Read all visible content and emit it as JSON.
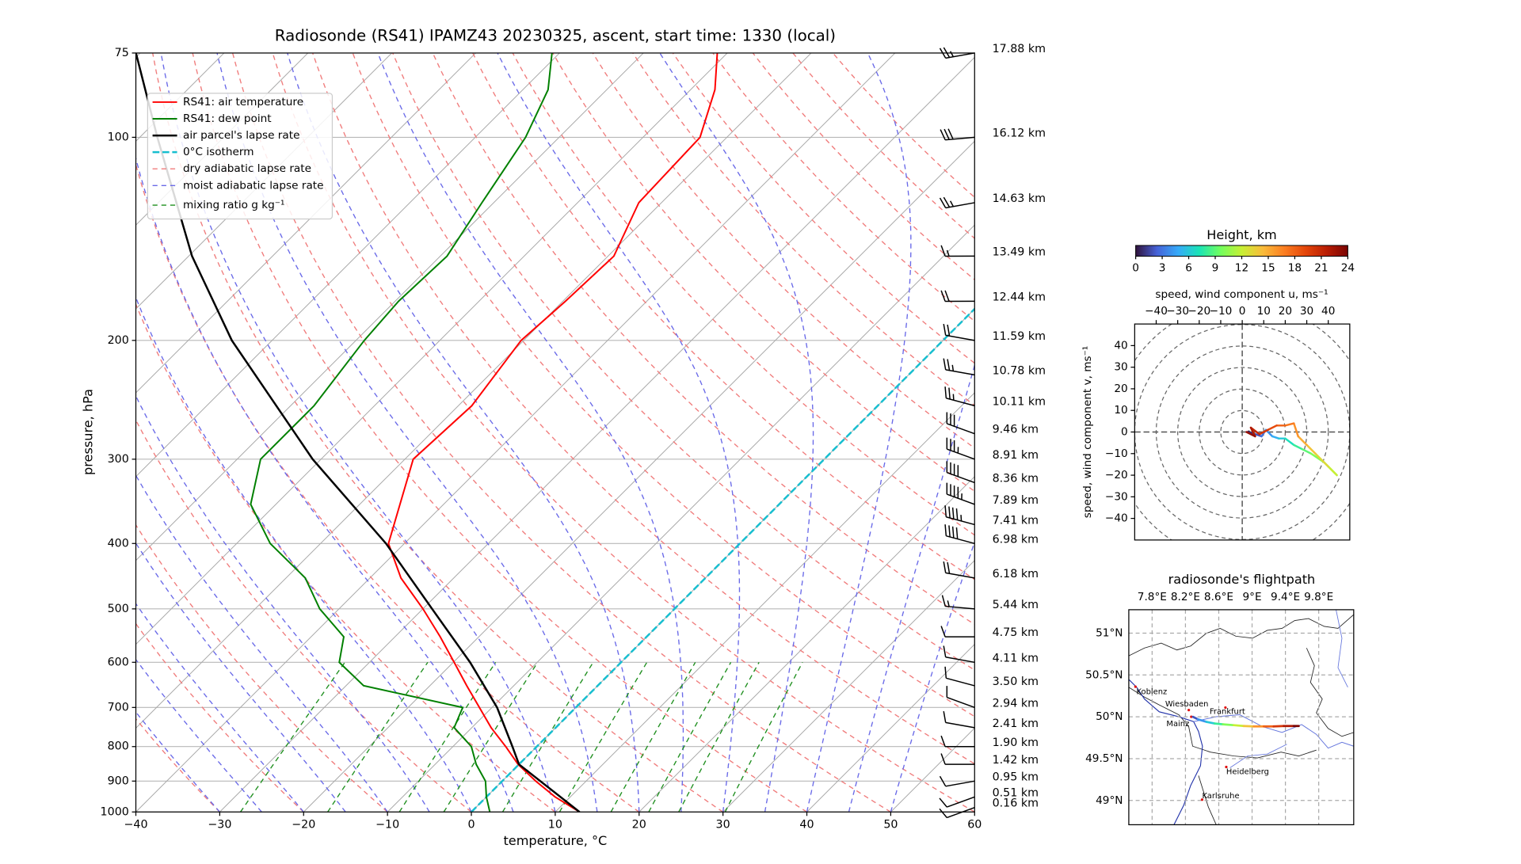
{
  "chart_data": [
    {
      "type": "skewt",
      "title": "Radiosonde (RS41) IPAMZ43 20230325, ascent, start time: 1330 (local)",
      "xlabel": "temperature, °C",
      "ylabel": "pressure, hPa",
      "xlim": [
        -40,
        60
      ],
      "ylim": [
        1000,
        75
      ],
      "ylog": true,
      "grid": true,
      "legend": "upper left",
      "xticks": [
        {
          "value": -40,
          "label": "−40"
        },
        {
          "value": -30,
          "label": "−30"
        },
        {
          "value": -20,
          "label": "−20"
        },
        {
          "value": -10,
          "label": "−10"
        },
        0,
        10,
        20,
        30,
        40,
        50,
        60
      ],
      "yticks": [
        1000,
        900,
        800,
        700,
        600,
        500,
        400,
        300,
        200,
        100,
        75
      ],
      "series": [
        {
          "name": "RS41: air temperature",
          "color": "#ff0000",
          "pressure": [
            1000,
            950,
            900,
            850,
            800,
            750,
            700,
            650,
            600,
            550,
            500,
            450,
            400,
            350,
            300,
            250,
            200,
            175,
            150,
            125,
            100,
            85,
            75
          ],
          "values": [
            12.9,
            8.2,
            4.0,
            -0.1,
            -3.7,
            -7.7,
            -11.5,
            -15.6,
            -19.9,
            -24.6,
            -30.0,
            -36.3,
            -41.9,
            -45.2,
            -49.0,
            -48.4,
            -50.3,
            -49.7,
            -49.3,
            -52.7,
            -53.2,
            -57.1,
            -61.2
          ]
        },
        {
          "name": "RS41: dew point",
          "color": "#008000",
          "pressure": [
            1000,
            950,
            900,
            850,
            800,
            750,
            700,
            650,
            600,
            550,
            500,
            450,
            400,
            350,
            300,
            250,
            200,
            175,
            150,
            125,
            100,
            85,
            75
          ],
          "values": [
            2.2,
            0.0,
            -2.0,
            -5.1,
            -7.8,
            -12.1,
            -13.5,
            -27.9,
            -33.6,
            -36.1,
            -42.3,
            -47.7,
            -56.0,
            -63.0,
            -67.2,
            -67.2,
            -69.0,
            -69.6,
            -69.2,
            -71.4,
            -74.0,
            -77.0,
            -80.9
          ]
        },
        {
          "name": "air parcel's lapse rate",
          "color": "#000000",
          "pressure": [
            1000,
            850,
            800,
            700,
            600,
            500,
            400,
            300,
            200,
            150,
            100,
            75
          ],
          "values": [
            12.9,
            0.0,
            -2.9,
            -9.4,
            -18.0,
            -28.9,
            -42.2,
            -61.0,
            -84.8,
            -99.6,
            -117.9,
            -130.5
          ]
        }
      ],
      "reference_lines": [
        {
          "name": "0°C isotherm",
          "color": "#17becf",
          "value": 0
        },
        {
          "name": "dry adiabatic lapse rate",
          "color": "#f07c7c"
        },
        {
          "name": "moist adiabatic lapse rate",
          "color": "#6a6ae8"
        },
        {
          "name": "mixing ratio g kg⁻¹",
          "color": "#1f8f1f"
        }
      ],
      "wind": {
        "pressure": [
          75,
          100,
          125,
          150,
          175,
          200,
          225,
          250,
          275,
          300,
          325,
          350,
          375,
          400,
          450,
          500,
          550,
          600,
          650,
          700,
          750,
          800,
          850,
          900,
          950,
          985
        ],
        "height_labels": [
          "17.88 km",
          "16.12 km",
          "14.63 km",
          "13.49 km",
          "12.44 km",
          "11.59 km",
          "10.78 km",
          "10.11 km",
          "9.46 km",
          "8.91 km",
          "8.36 km",
          "7.89 km",
          "7.41 km",
          "6.98 km",
          "6.18 km",
          "5.44 km",
          "4.75 km",
          "4.11 km",
          "3.50 km",
          "2.94 km",
          "2.41 km",
          "1.90 km",
          "1.42 km",
          "0.95 km",
          "0.51 km",
          "0.16 km"
        ],
        "speed": [
          25,
          30,
          25,
          15,
          20,
          20,
          25,
          25,
          30,
          35,
          40,
          45,
          45,
          40,
          20,
          15,
          10,
          10,
          10,
          10,
          10,
          10,
          10,
          10,
          10,
          10
        ],
        "direction": [
          260,
          265,
          260,
          270,
          270,
          280,
          280,
          285,
          290,
          290,
          290,
          290,
          285,
          285,
          280,
          275,
          270,
          280,
          285,
          290,
          280,
          270,
          270,
          260,
          250,
          250
        ]
      }
    },
    {
      "type": "hodograph",
      "colorbar_title": "Height, km",
      "colorbar_lim": [
        0,
        24
      ],
      "colorbar_ticks": [
        0,
        3,
        6,
        9,
        12,
        15,
        18,
        21,
        24
      ],
      "xlabel": "speed, wind component u, ms⁻¹",
      "ylabel": "speed, wind component v, ms⁻¹",
      "xlim": [
        -50,
        50
      ],
      "ylim": [
        -50,
        50
      ],
      "xticks": [
        {
          "value": -40,
          "label": "−40"
        },
        {
          "value": -30,
          "label": "−30"
        },
        {
          "value": -20,
          "label": "−20"
        },
        {
          "value": -10,
          "label": "−10"
        },
        0,
        10,
        20,
        30,
        40
      ],
      "yticks": [
        {
          "value": -40,
          "label": "−40"
        },
        {
          "value": -30,
          "label": "−30"
        },
        {
          "value": -20,
          "label": "−20"
        },
        {
          "value": -10,
          "label": "−10"
        },
        0,
        10,
        20,
        30,
        40
      ],
      "rings": [
        10,
        20,
        30,
        40,
        50,
        60
      ],
      "height": [
        0,
        1,
        2,
        3,
        4,
        5,
        6,
        7,
        8,
        9,
        10,
        11,
        12,
        13,
        14,
        15,
        16,
        17,
        18,
        19,
        20,
        21,
        22,
        23
      ],
      "u": [
        3,
        6,
        9,
        11,
        14,
        17,
        20,
        24,
        28,
        32,
        38,
        44,
        40,
        34,
        30,
        26,
        24,
        20,
        16,
        12,
        8,
        4,
        6,
        2
      ],
      "v": [
        0,
        -1,
        -2,
        1,
        -2,
        -3,
        -3,
        -6,
        -8,
        -10,
        -14,
        -20,
        -16,
        -10,
        -6,
        -2,
        4,
        3,
        3,
        1,
        -1,
        2,
        -2,
        0
      ]
    },
    {
      "type": "map",
      "title": "radiosonde's flightpath",
      "xlim": [
        7.52,
        10.22
      ],
      "ylim": [
        48.71,
        51.28
      ],
      "xticks": [
        {
          "value": 7.8,
          "label": "7.8°E"
        },
        {
          "value": 8.2,
          "label": "8.2°E"
        },
        {
          "value": 8.6,
          "label": "8.6°E"
        },
        {
          "value": 9,
          "label": "9°E"
        },
        {
          "value": 9.4,
          "label": "9.4°E"
        },
        {
          "value": 9.8,
          "label": "9.8°E"
        }
      ],
      "yticks": [
        {
          "value": 51,
          "label": "51°N"
        },
        {
          "value": 50.5,
          "label": "50.5°N"
        },
        {
          "value": 50,
          "label": "50°N"
        },
        {
          "value": 49.5,
          "label": "49.5°N"
        },
        {
          "value": 49,
          "label": "49°N"
        }
      ],
      "cities": [
        {
          "name": "Koblenz",
          "lon": 7.6,
          "lat": 50.36
        },
        {
          "name": "Wiesbaden",
          "lon": 8.24,
          "lat": 50.08
        },
        {
          "name": "Frankfurt",
          "lon": 8.68,
          "lat": 50.11
        },
        {
          "name": "Mainz",
          "lon": 8.27,
          "lat": 50.0
        },
        {
          "name": "Heidelberg",
          "lon": 8.69,
          "lat": 49.4
        },
        {
          "name": "Karlsruhe",
          "lon": 8.4,
          "lat": 49.01
        }
      ],
      "track": {
        "lon": [
          8.29,
          8.35,
          8.45,
          8.55,
          8.65,
          8.78,
          8.9,
          9.02,
          9.14,
          9.26,
          9.38,
          9.5,
          9.56
        ],
        "lat": [
          50.0,
          49.97,
          49.94,
          49.92,
          49.91,
          49.9,
          49.89,
          49.885,
          49.885,
          49.885,
          49.89,
          49.89,
          49.89
        ],
        "height": [
          0,
          2,
          4,
          6,
          8,
          10,
          12,
          14,
          16,
          18,
          20,
          22,
          24
        ]
      }
    }
  ]
}
